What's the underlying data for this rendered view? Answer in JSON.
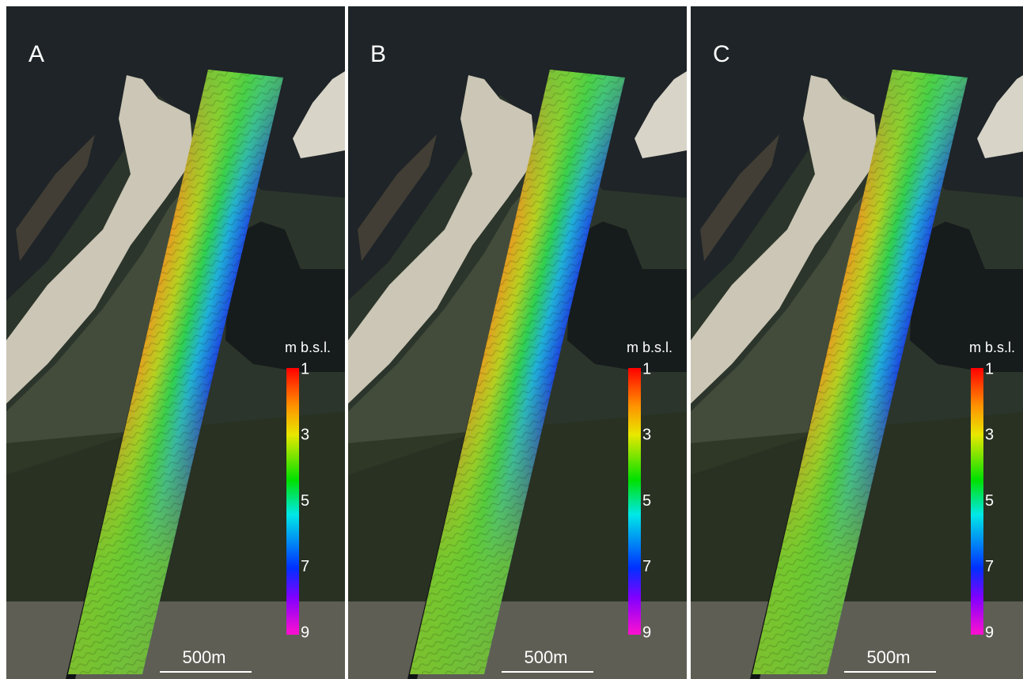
{
  "panels": [
    {
      "label": "A"
    },
    {
      "label": "B"
    },
    {
      "label": "C"
    }
  ],
  "legend": {
    "title": "m b.s.l.",
    "ticks": [
      1,
      3,
      5,
      7,
      9
    ]
  },
  "scale_bar": {
    "label": "500m"
  }
}
